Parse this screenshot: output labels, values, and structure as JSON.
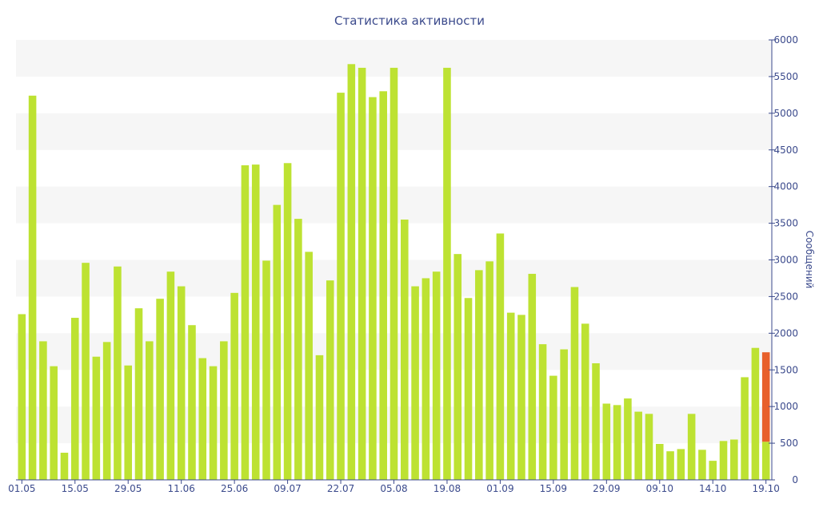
{
  "chart_data": {
    "type": "bar",
    "title": "Статистика активности",
    "ylabel": "Сообщений",
    "xlabel": "",
    "ylim": [
      0,
      6000
    ],
    "y_ticks": [
      0,
      500,
      1000,
      1500,
      2000,
      2500,
      3000,
      3500,
      4000,
      4500,
      5000,
      5500,
      6000
    ],
    "y_axis_side": "right",
    "x_tick_labels": [
      {
        "index": 0,
        "label": "01.05"
      },
      {
        "index": 5,
        "label": "15.05"
      },
      {
        "index": 10,
        "label": "29.05"
      },
      {
        "index": 15,
        "label": "11.06"
      },
      {
        "index": 20,
        "label": "25.06"
      },
      {
        "index": 25,
        "label": "09.07"
      },
      {
        "index": 30,
        "label": "22.07"
      },
      {
        "index": 35,
        "label": "05.08"
      },
      {
        "index": 40,
        "label": "19.08"
      },
      {
        "index": 45,
        "label": "01.09"
      },
      {
        "index": 50,
        "label": "15.09"
      },
      {
        "index": 55,
        "label": "29.09"
      },
      {
        "index": 60,
        "label": "09.10"
      },
      {
        "index": 65,
        "label": "14.10"
      },
      {
        "index": 70,
        "label": "19.10"
      }
    ],
    "colors": {
      "bar": "#bde232",
      "highlight": "#e8602c",
      "band": "#f6f6f6",
      "axis": "#3b4a8c",
      "text": "#3b4a8c"
    },
    "values": [
      2260,
      5240,
      1890,
      1550,
      370,
      2210,
      2960,
      1680,
      1880,
      2910,
      1560,
      2340,
      1890,
      2470,
      2840,
      2640,
      2110,
      1660,
      1550,
      1890,
      2550,
      4290,
      4300,
      2990,
      3750,
      4320,
      3560,
      3110,
      1700,
      2720,
      5280,
      5670,
      5620,
      5220,
      5300,
      5620,
      3550,
      2640,
      2750,
      2840,
      5620,
      3080,
      2480,
      2860,
      2980,
      3360,
      2280,
      2250,
      2810,
      1850,
      1420,
      1780,
      2630,
      2130,
      1590,
      1040,
      1020,
      1110,
      930,
      900,
      490,
      390,
      420,
      900,
      410,
      260,
      530,
      550,
      1400,
      1800,
      1740
    ],
    "highlight_last": {
      "index": 70,
      "total": 1740,
      "base": 520
    }
  }
}
